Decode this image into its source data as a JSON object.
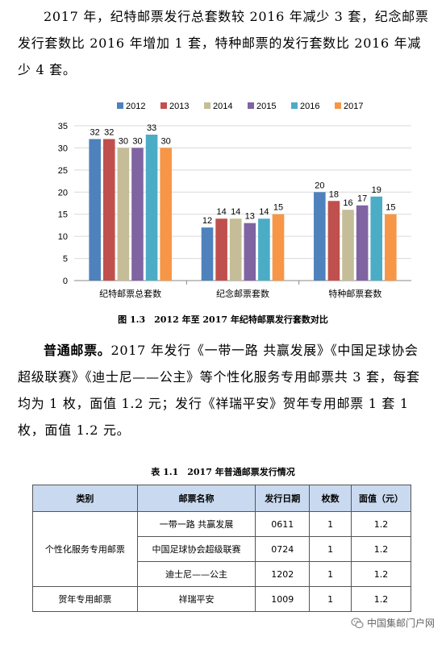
{
  "para1": "2017 年，纪特邮票发行总套数较 2016 年减少 3 套，纪念邮票发行套数比 2016 年增加 1 套，特种邮票的发行套数比 2016 年减少 4 套。",
  "chart_data": {
    "type": "bar",
    "categories": [
      "纪特邮票总套数",
      "纪念邮票套数",
      "特种邮票套数"
    ],
    "series": [
      {
        "name": "2012",
        "color": "#4f81bd",
        "values": [
          32,
          12,
          20
        ]
      },
      {
        "name": "2013",
        "color": "#c0504d",
        "values": [
          32,
          14,
          18
        ]
      },
      {
        "name": "2014",
        "color": "#c4bd97",
        "values": [
          30,
          14,
          16
        ]
      },
      {
        "name": "2015",
        "color": "#8064a2",
        "values": [
          30,
          13,
          17
        ]
      },
      {
        "name": "2016",
        "color": "#4bacc6",
        "values": [
          33,
          14,
          19
        ]
      },
      {
        "name": "2017",
        "color": "#f79646",
        "values": [
          30,
          15,
          15
        ]
      }
    ],
    "yticks": [
      "0",
      "5",
      "10",
      "15",
      "20",
      "25",
      "30",
      "35"
    ],
    "ylim": [
      0,
      35
    ],
    "legend": "top",
    "grid": true
  },
  "figure_caption": "图 1.3　2012 年至 2017 年纪特邮票发行套数对比",
  "para2_lead": "普通邮票。",
  "para2_body": "2017 年发行《一带一路 共赢发展》《中国足球协会超级联赛》《迪士尼——公主》等个性化服务专用邮票共 3 套，每套均为 1 枚，面值 1.2 元；发行《祥瑞平安》贺年专用邮票 1 套 1 枚，面值 1.2 元。",
  "table_caption": "表 1.1　2017 年普通邮票发行情况",
  "table": {
    "headers": [
      "类别",
      "邮票名称",
      "发行日期",
      "枚数",
      "面值（元）"
    ],
    "group1_label": "个性化服务专用邮票",
    "group2_label": "贺年专用邮票",
    "rows": [
      {
        "name": "一带一路 共赢发展",
        "date": "0611",
        "count": "1",
        "value": "1.2"
      },
      {
        "name": "中国足球协会超级联赛",
        "date": "0724",
        "count": "1",
        "value": "1.2"
      },
      {
        "name": "迪士尼——公主",
        "date": "1202",
        "count": "1",
        "value": "1.2"
      },
      {
        "name": "祥瑞平安",
        "date": "1009",
        "count": "1",
        "value": "1.2"
      }
    ],
    "header_bg": "#c9d9ef"
  },
  "watermark": "中国集邮门户网",
  "watermark_icon": "wechat-icon"
}
